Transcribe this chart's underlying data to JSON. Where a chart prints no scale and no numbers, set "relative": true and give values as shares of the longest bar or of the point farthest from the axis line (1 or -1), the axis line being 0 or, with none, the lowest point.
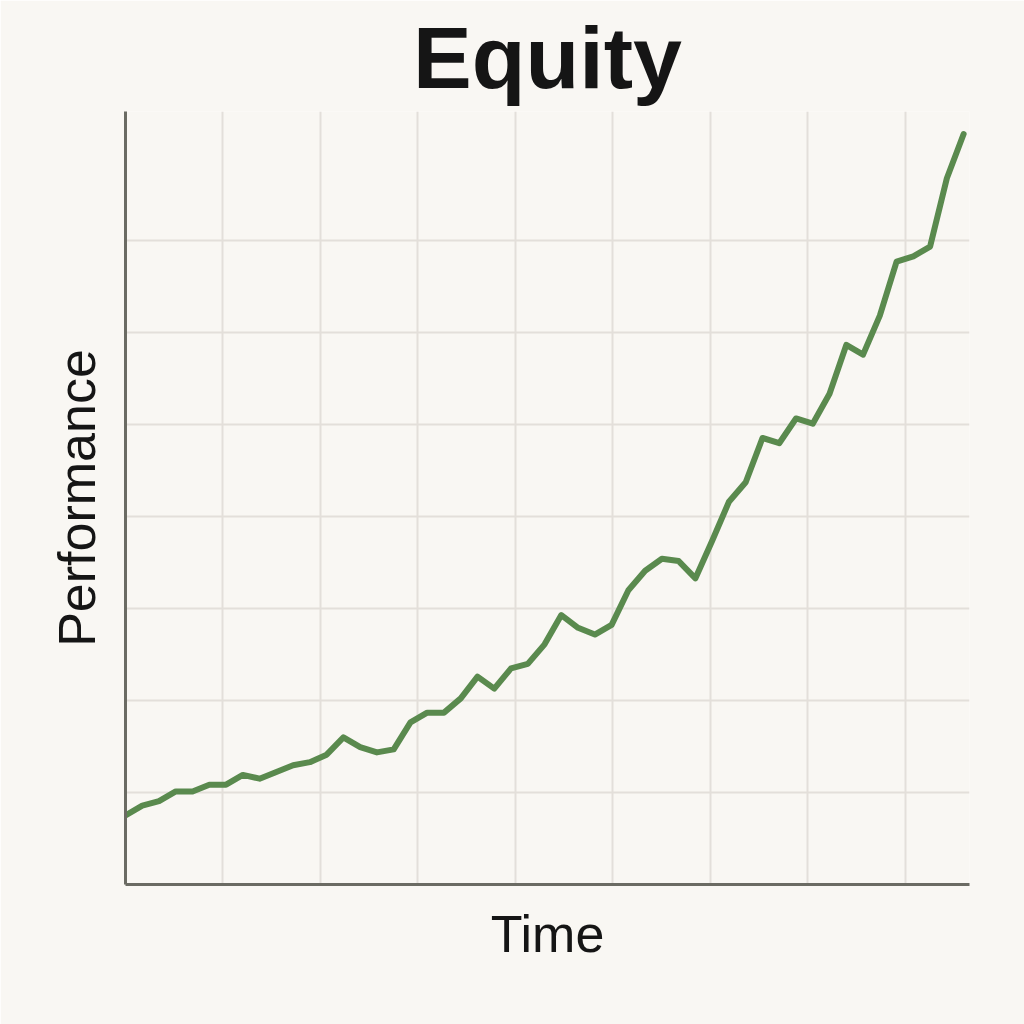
{
  "chart_data": {
    "type": "line",
    "title": "Equity",
    "xlabel": "Time",
    "ylabel": "Performance",
    "relative": true,
    "grid": true,
    "categories": [
      null,
      null,
      null,
      null,
      null,
      null,
      null,
      null,
      null,
      null,
      null,
      null,
      null,
      null,
      null,
      null,
      null,
      null,
      null,
      null,
      null,
      null,
      null,
      null,
      null,
      null,
      null,
      null,
      null,
      null,
      null,
      null,
      null,
      null,
      null,
      null,
      null,
      null,
      null,
      null,
      null,
      null,
      null,
      null,
      null,
      null,
      null,
      null,
      null,
      null,
      null
    ],
    "series": [
      {
        "color": "#5a8a4e",
        "values": [
          0.092,
          0.105,
          0.111,
          0.124,
          0.124,
          0.133,
          0.133,
          0.146,
          0.141,
          0.15,
          0.159,
          0.163,
          0.173,
          0.196,
          0.183,
          0.176,
          0.18,
          0.216,
          0.229,
          0.229,
          0.248,
          0.277,
          0.261,
          0.288,
          0.294,
          0.32,
          0.359,
          0.342,
          0.333,
          0.346,
          0.392,
          0.418,
          0.434,
          0.431,
          0.408,
          0.458,
          0.51,
          0.536,
          0.595,
          0.588,
          0.621,
          0.614,
          0.654,
          0.719,
          0.706,
          0.758,
          0.83,
          0.837,
          0.85,
          0.941,
          1.0
        ]
      }
    ]
  }
}
